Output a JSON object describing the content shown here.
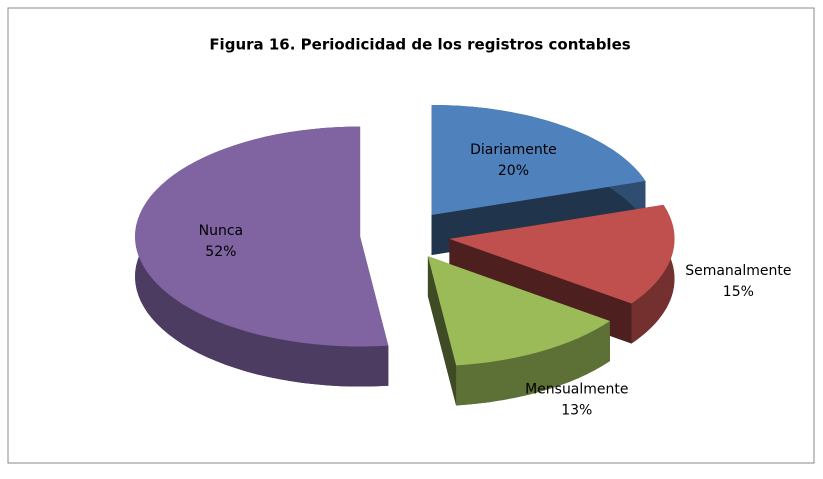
{
  "chart_data": {
    "type": "pie",
    "title": "Figura 16.  Periodicidad de los registros contables",
    "categories": [
      "Diariamente",
      "Semanalmente",
      "Mensualmente",
      "Nunca"
    ],
    "values": [
      20,
      15,
      13,
      52
    ],
    "value_labels": [
      "20%",
      "15%",
      "13%",
      "52%"
    ],
    "colors": [
      "#4f81bd",
      "#c0504d",
      "#9bbb59",
      "#8064a2"
    ]
  }
}
